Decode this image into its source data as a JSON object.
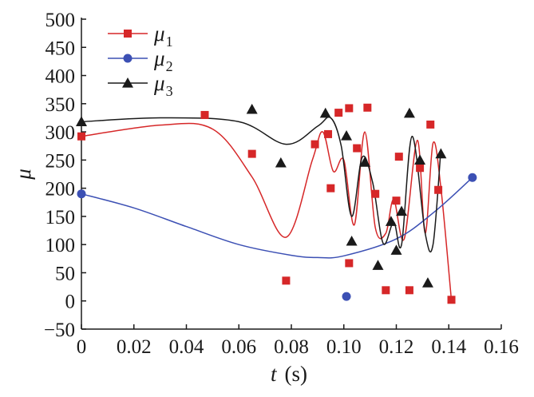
{
  "chart_data": {
    "type": "scatter",
    "xlabel": "t",
    "xunit": "(s)",
    "ylabel": "μ",
    "xlim": [
      0,
      0.16
    ],
    "ylim": [
      -50,
      500
    ],
    "x_ticks": [
      "0",
      "0.02",
      "0.04",
      "0.06",
      "0.08",
      "0.10",
      "0.12",
      "0.14",
      "0.16"
    ],
    "y_ticks": [
      "−50",
      "0",
      "50",
      "100",
      "150",
      "200",
      "250",
      "300",
      "350",
      "400",
      "450",
      "500"
    ],
    "grid": false,
    "legend": "top-left",
    "series": [
      {
        "name": "μ",
        "subscript": "1",
        "color": "#d62728",
        "marker": "square",
        "points": [
          [
            0,
            292
          ],
          [
            0.047,
            330
          ],
          [
            0.065,
            261
          ],
          [
            0.078,
            36
          ],
          [
            0.089,
            278
          ],
          [
            0.094,
            296
          ],
          [
            0.095,
            200
          ],
          [
            0.098,
            334
          ],
          [
            0.102,
            342
          ],
          [
            0.102,
            67
          ],
          [
            0.105,
            271
          ],
          [
            0.109,
            343
          ],
          [
            0.112,
            190
          ],
          [
            0.116,
            19
          ],
          [
            0.12,
            178
          ],
          [
            0.121,
            256
          ],
          [
            0.125,
            19
          ],
          [
            0.129,
            236
          ],
          [
            0.133,
            313
          ],
          [
            0.136,
            197
          ],
          [
            0.141,
            2
          ]
        ],
        "curve": [
          [
            0,
            292
          ],
          [
            0.03,
            312
          ],
          [
            0.05,
            305
          ],
          [
            0.065,
            220
          ],
          [
            0.078,
            113
          ],
          [
            0.088,
            250
          ],
          [
            0.092,
            300
          ],
          [
            0.096,
            230
          ],
          [
            0.1,
            250
          ],
          [
            0.104,
            135
          ],
          [
            0.108,
            300
          ],
          [
            0.112,
            130
          ],
          [
            0.116,
            120
          ],
          [
            0.119,
            180
          ],
          [
            0.123,
            110
          ],
          [
            0.128,
            285
          ],
          [
            0.131,
            120
          ],
          [
            0.134,
            280
          ],
          [
            0.137,
            200
          ],
          [
            0.141,
            2
          ]
        ]
      },
      {
        "name": "μ",
        "subscript": "2",
        "color": "#3c50b4",
        "marker": "circle",
        "points": [
          [
            0,
            190
          ],
          [
            0.101,
            8
          ],
          [
            0.149,
            219
          ]
        ],
        "curve": [
          [
            0,
            190
          ],
          [
            0.02,
            165
          ],
          [
            0.04,
            132
          ],
          [
            0.06,
            100
          ],
          [
            0.08,
            81
          ],
          [
            0.09,
            77
          ],
          [
            0.1,
            80
          ],
          [
            0.12,
            110
          ],
          [
            0.135,
            160
          ],
          [
            0.149,
            219
          ]
        ]
      },
      {
        "name": "μ",
        "subscript": "3",
        "color": "#1a1a1a",
        "marker": "triangle",
        "points": [
          [
            0,
            318
          ],
          [
            0.065,
            340
          ],
          [
            0.076,
            245
          ],
          [
            0.093,
            333
          ],
          [
            0.101,
            293
          ],
          [
            0.103,
            106
          ],
          [
            0.108,
            246
          ],
          [
            0.113,
            63
          ],
          [
            0.118,
            141
          ],
          [
            0.12,
            90
          ],
          [
            0.122,
            159
          ],
          [
            0.125,
            333
          ],
          [
            0.129,
            250
          ],
          [
            0.132,
            32
          ],
          [
            0.137,
            261
          ]
        ],
        "curve": [
          [
            0,
            318
          ],
          [
            0.03,
            325
          ],
          [
            0.06,
            318
          ],
          [
            0.078,
            278
          ],
          [
            0.09,
            310
          ],
          [
            0.095,
            325
          ],
          [
            0.099,
            275
          ],
          [
            0.103,
            150
          ],
          [
            0.107,
            255
          ],
          [
            0.111,
            210
          ],
          [
            0.115,
            102
          ],
          [
            0.119,
            140
          ],
          [
            0.122,
            100
          ],
          [
            0.126,
            292
          ],
          [
            0.131,
            120
          ],
          [
            0.134,
            100
          ],
          [
            0.137,
            270
          ]
        ]
      }
    ]
  }
}
